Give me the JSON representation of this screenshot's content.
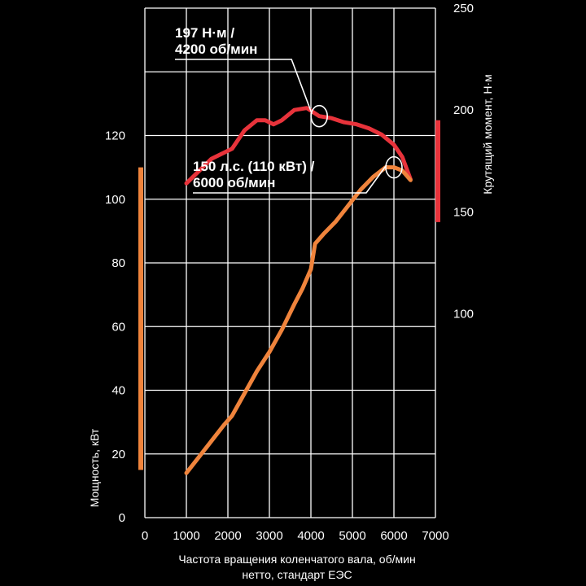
{
  "chart_data": {
    "type": "line",
    "xlabel_line1": "Частота вращения коленчатого вала, об/мин",
    "xlabel_line2": "нетто, стандарт ЕЭС",
    "ylabel_left": "Мощность, кВт",
    "ylabel_right": "Крутящий момент, Н·м",
    "x_ticks": [
      "0",
      "1000",
      "2000",
      "3000",
      "4000",
      "5000",
      "6000",
      "7000"
    ],
    "x_tick_values": [
      0,
      1000,
      2000,
      3000,
      4000,
      5000,
      6000,
      7000
    ],
    "xlim": [
      0,
      7000
    ],
    "y_left_ticks": [
      "0",
      "20",
      "40",
      "60",
      "80",
      "100",
      "120"
    ],
    "y_left_tick_values": [
      0,
      20,
      40,
      60,
      80,
      100,
      120
    ],
    "ylim_left": [
      0,
      160
    ],
    "y_right_ticks": [
      "100",
      "150",
      "200",
      "250"
    ],
    "y_right_tick_values": [
      100,
      150,
      200,
      250
    ],
    "ylim_right": [
      0,
      250
    ],
    "series": [
      {
        "name": "Крутящий момент, Н·м",
        "axis": "right",
        "color": "#e8333b",
        "x": [
          1000,
          1300,
          1600,
          1900,
          2100,
          2400,
          2700,
          2900,
          3100,
          3300,
          3600,
          3900,
          4200,
          4500,
          4800,
          5100,
          5400,
          5700,
          6000,
          6200,
          6400
        ],
        "y": [
          164,
          170,
          176,
          179,
          181,
          190,
          195,
          195,
          193,
          195,
          200,
          201,
          197,
          196,
          194,
          193,
          191,
          188,
          183,
          177,
          166
        ]
      },
      {
        "name": "Мощность, кВт",
        "axis": "left",
        "color": "#f0843c",
        "x": [
          1000,
          1300,
          1600,
          1900,
          2100,
          2400,
          2700,
          3000,
          3300,
          3600,
          3800,
          4000,
          4100,
          4300,
          4600,
          4900,
          5200,
          5500,
          5800,
          6000,
          6200,
          6400
        ],
        "y": [
          14,
          19,
          24,
          29,
          32,
          39,
          46,
          52,
          59,
          67,
          72,
          78,
          86,
          89,
          93,
          98,
          103,
          107,
          110,
          110,
          109,
          106
        ]
      }
    ],
    "annotations": [
      {
        "series": 0,
        "x": 4200,
        "y": 197,
        "line1": "197 Н·м /",
        "line2": "4200 об/мин"
      },
      {
        "series": 1,
        "x": 6000,
        "y": 110,
        "line1": "150 л.с. (110 кВт) /",
        "line2": "6000 об/мин"
      }
    ],
    "scale_bars": [
      {
        "axis": "left",
        "from": 15,
        "to": 110,
        "color": "#f0843c"
      },
      {
        "axis": "right",
        "from": 145,
        "to": 195,
        "color": "#e8333b"
      }
    ],
    "grid": true
  }
}
